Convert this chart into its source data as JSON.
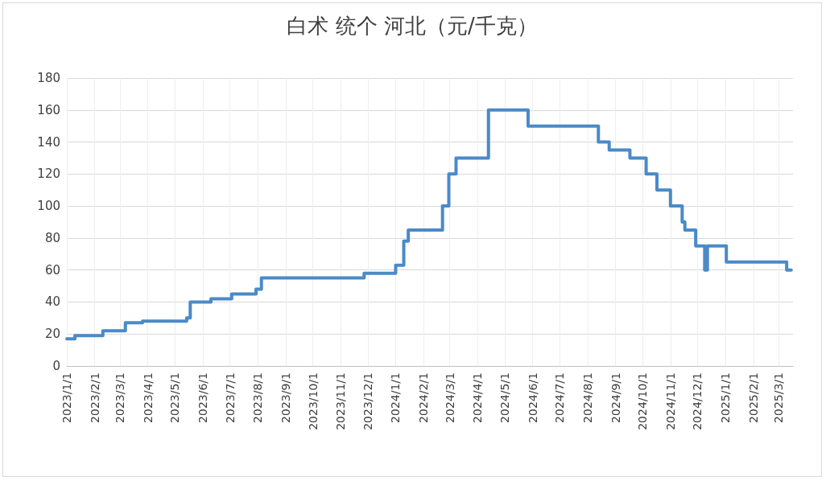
{
  "chart_data": {
    "type": "step",
    "title": "白术 统个 河北（元/千克）",
    "x": [
      "2023-01-01",
      "2023-01-10",
      "2023-02-10",
      "2023-03-07",
      "2023-03-26",
      "2023-05-14",
      "2023-05-18",
      "2023-06-10",
      "2023-07-03",
      "2023-07-30",
      "2023-08-05",
      "2023-11-27",
      "2024-01-01",
      "2024-01-10",
      "2024-01-15",
      "2024-02-22",
      "2024-02-29",
      "2024-03-08",
      "2024-04-13",
      "2024-05-27",
      "2024-08-13",
      "2024-08-25",
      "2024-09-17",
      "2024-10-05",
      "2024-10-17",
      "2024-11-01",
      "2024-11-14",
      "2024-11-17",
      "2024-11-29",
      "2024-12-09",
      "2024-12-12",
      "2025-01-02",
      "2025-03-10",
      "2025-03-15"
    ],
    "series": [
      {
        "color": "#4a8ac8",
        "values": [
          17,
          19,
          22,
          27,
          28,
          30,
          40,
          42,
          45,
          48,
          55,
          58,
          63,
          78,
          85,
          100,
          120,
          130,
          160,
          150,
          140,
          135,
          130,
          120,
          110,
          100,
          90,
          85,
          75,
          60,
          75,
          65,
          60,
          60
        ]
      }
    ],
    "xlim": [
      "2023-01-01",
      "2025-03-17"
    ],
    "xticks": [
      {
        "value": "2023-01-01",
        "label": "2023/1/1"
      },
      {
        "value": "2023-02-01",
        "label": "2023/2/1"
      },
      {
        "value": "2023-03-01",
        "label": "2023/3/1"
      },
      {
        "value": "2023-04-01",
        "label": "2023/4/1"
      },
      {
        "value": "2023-05-01",
        "label": "2023/5/1"
      },
      {
        "value": "2023-06-01",
        "label": "2023/6/1"
      },
      {
        "value": "2023-07-01",
        "label": "2023/7/1"
      },
      {
        "value": "2023-08-01",
        "label": "2023/8/1"
      },
      {
        "value": "2023-09-01",
        "label": "2023/9/1"
      },
      {
        "value": "2023-10-01",
        "label": "2023/10/1"
      },
      {
        "value": "2023-11-01",
        "label": "2023/11/1"
      },
      {
        "value": "2023-12-01",
        "label": "2023/12/1"
      },
      {
        "value": "2024-01-01",
        "label": "2024/1/1"
      },
      {
        "value": "2024-02-01",
        "label": "2024/2/1"
      },
      {
        "value": "2024-03-01",
        "label": "2024/3/1"
      },
      {
        "value": "2024-04-01",
        "label": "2024/4/1"
      },
      {
        "value": "2024-05-01",
        "label": "2024/5/1"
      },
      {
        "value": "2024-06-01",
        "label": "2024/6/1"
      },
      {
        "value": "2024-07-01",
        "label": "2024/7/1"
      },
      {
        "value": "2024-08-01",
        "label": "2024/8/1"
      },
      {
        "value": "2024-09-01",
        "label": "2024/9/1"
      },
      {
        "value": "2024-10-01",
        "label": "2024/10/1"
      },
      {
        "value": "2024-11-01",
        "label": "2024/11/1"
      },
      {
        "value": "2024-12-01",
        "label": "2024/12/1"
      },
      {
        "value": "2025-01-01",
        "label": "2025/1/1"
      },
      {
        "value": "2025-02-01",
        "label": "2025/2/1"
      },
      {
        "value": "2025-03-01",
        "label": "2025/3/1"
      }
    ],
    "ylim": [
      0,
      180
    ],
    "yticks": [
      0,
      20,
      40,
      60,
      80,
      100,
      120,
      140,
      160,
      180
    ],
    "grid": true,
    "marker": "none",
    "line_style": "solid"
  }
}
